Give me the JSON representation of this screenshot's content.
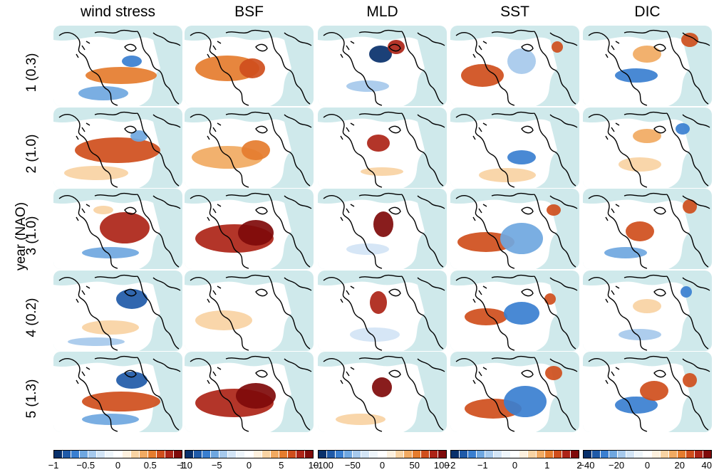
{
  "figure": {
    "y_axis_title": "year (NAO)",
    "columns": [
      "wind stress",
      "BSF",
      "MLD",
      "SST",
      "DIC"
    ],
    "rows": [
      "1 (0.3)",
      "2 (1.0)",
      "3 (1.0)",
      "4 (0.2)",
      "5 (1.3)"
    ],
    "colorbars": [
      {
        "ticks": [
          "−1",
          "−0.5",
          "0",
          "0.5",
          "1"
        ]
      },
      {
        "ticks": [
          "−10",
          "−5",
          "0",
          "5",
          "10"
        ]
      },
      {
        "ticks": [
          "−100",
          "−50",
          "0",
          "50",
          "100"
        ]
      },
      {
        "ticks": [
          "−2",
          "−1",
          "0",
          "1",
          "2"
        ]
      },
      {
        "ticks": [
          "−40",
          "−20",
          "0",
          "20",
          "40"
        ]
      }
    ],
    "palette": [
      "#08306b",
      "#1f5aa8",
      "#3a7fd0",
      "#6fa7e0",
      "#a6c9ec",
      "#d2e4f5",
      "#eef5fb",
      "#ffffff",
      "#fdf0de",
      "#f8d3a3",
      "#f1aa62",
      "#e57c2e",
      "#cf4e1c",
      "#ad2417",
      "#7f0a0a"
    ],
    "land_color": "#cfe9eb"
  }
}
